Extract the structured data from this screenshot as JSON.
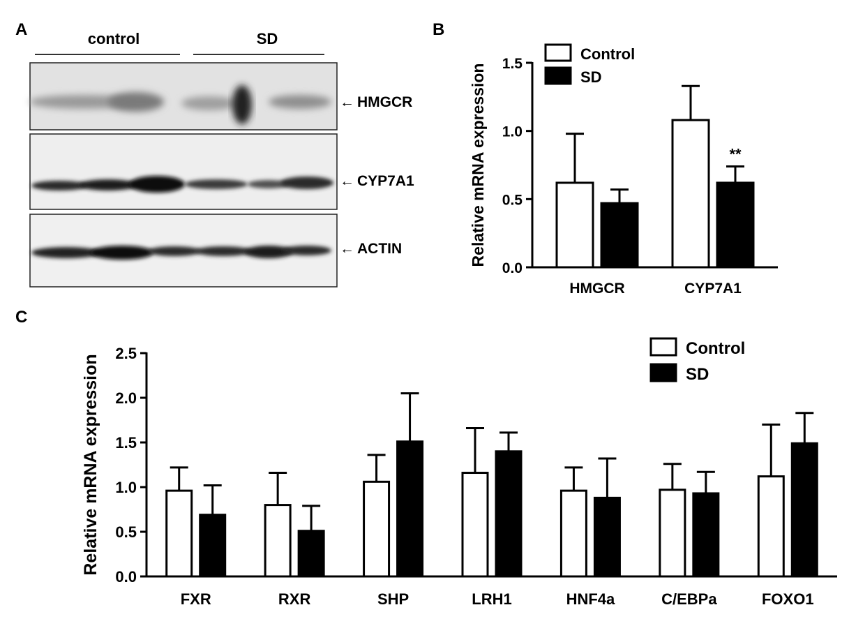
{
  "panels": {
    "a": "A",
    "b": "B",
    "c": "C"
  },
  "blot": {
    "groups": [
      "control",
      "SD"
    ],
    "bands": [
      "HMGCR",
      "CYP7A1",
      "ACTIN"
    ],
    "arrow": "←"
  },
  "chart_data": [
    {
      "type": "bar",
      "panel": "B",
      "categories": [
        "HMGCR",
        "CYP7A1"
      ],
      "series": [
        {
          "name": "Control",
          "values": [
            0.62,
            1.08
          ],
          "errors": [
            0.36,
            0.25
          ],
          "fill": "#ffffff"
        },
        {
          "name": "SD",
          "values": [
            0.47,
            0.62
          ],
          "errors": [
            0.1,
            0.12
          ],
          "fill": "#000000"
        }
      ],
      "annotations": [
        {
          "category": "CYP7A1",
          "series": "SD",
          "text": "**"
        }
      ],
      "ylabel": "Relative mRNA expression",
      "ylim": [
        0,
        1.5
      ],
      "yticks": [
        0.0,
        0.5,
        1.0,
        1.5
      ],
      "ytick_labels": [
        "0.0",
        "0.5",
        "1.0",
        "1.5"
      ],
      "legend": "top-left"
    },
    {
      "type": "bar",
      "panel": "C",
      "categories": [
        "FXR",
        "RXR",
        "SHP",
        "LRH1",
        "HNF4a",
        "C/EBPa",
        "FOXO1"
      ],
      "series": [
        {
          "name": "Control",
          "values": [
            0.96,
            0.8,
            1.06,
            1.16,
            0.96,
            0.97,
            1.12
          ],
          "errors": [
            0.26,
            0.36,
            0.3,
            0.5,
            0.26,
            0.29,
            0.58
          ],
          "fill": "#ffffff"
        },
        {
          "name": "SD",
          "values": [
            0.69,
            0.51,
            1.51,
            1.4,
            0.88,
            0.93,
            1.49
          ],
          "errors": [
            0.33,
            0.28,
            0.54,
            0.21,
            0.44,
            0.24,
            0.34
          ],
          "fill": "#000000"
        }
      ],
      "ylabel": "Relative mRNA expression",
      "ylim": [
        0,
        2.5
      ],
      "yticks": [
        0.0,
        0.5,
        1.0,
        1.5,
        2.0,
        2.5
      ],
      "ytick_labels": [
        "0.0",
        "0.5",
        "1.0",
        "1.5",
        "2.0",
        "2.5"
      ],
      "legend": "top-right"
    }
  ]
}
